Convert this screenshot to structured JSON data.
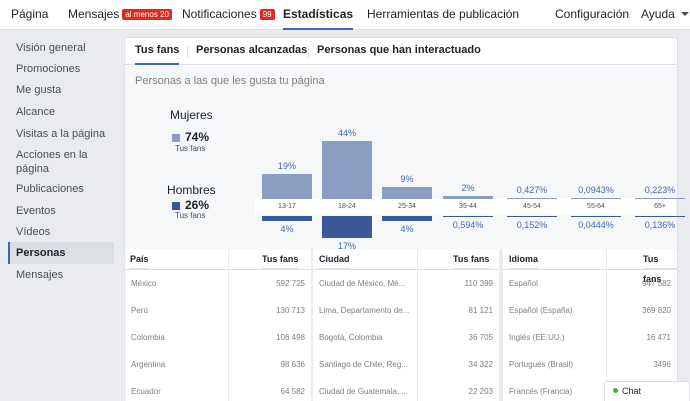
{
  "topnav": {
    "pagina": "Página",
    "mensajes": "Mensajes",
    "mensajes_badge": "al menos 20",
    "notificaciones": "Notificaciones",
    "notificaciones_badge": "99",
    "estadisticas": "Estadísticas",
    "herramientas": "Herramientas de publicación",
    "configuracion": "Configuración",
    "ayuda": "Ayuda"
  },
  "sidebar": {
    "items": [
      {
        "label": "Visión general"
      },
      {
        "label": "Promociones"
      },
      {
        "label": "Me gusta"
      },
      {
        "label": "Alcance"
      },
      {
        "label": "Visitas a la página"
      },
      {
        "label": "Acciones en la página"
      },
      {
        "label": "Publicaciones"
      },
      {
        "label": "Eventos"
      },
      {
        "label": "Vídeos"
      },
      {
        "label": "Personas"
      },
      {
        "label": "Mensajes"
      }
    ],
    "active": "Personas"
  },
  "tabs": [
    "Tus fans",
    "Personas alcanzadas",
    "Personas que han interactuado"
  ],
  "chart_data": {
    "type": "bar",
    "title": "Personas a las que les gusta tu página",
    "categories": [
      "13-17",
      "18-24",
      "25-34",
      "35-44",
      "45-54",
      "55-64",
      "65+"
    ],
    "series": [
      {
        "name": "Mujeres",
        "total": "74%",
        "sub": "Tus fans",
        "color": "#8b9dc3",
        "values": [
          19,
          44,
          9,
          2,
          0.427,
          0.0943,
          0.223
        ],
        "labels": [
          "19%",
          "44%",
          "9%",
          "2%",
          "0,427%",
          "0,0943%",
          "0,223%"
        ]
      },
      {
        "name": "Hombres",
        "total": "26%",
        "sub": "Tus fans",
        "color": "#3b5998",
        "values": [
          4,
          17,
          4,
          0.594,
          0.152,
          0.0444,
          0.136
        ],
        "labels": [
          "4%",
          "17%",
          "4%",
          "0,594%",
          "0,152%",
          "0,0444%",
          "0,136%"
        ]
      }
    ]
  },
  "tables": [
    {
      "header": "País",
      "value_header": "Tus fans",
      "rows": [
        [
          "México",
          "592 725"
        ],
        [
          "Perú",
          "130 713"
        ],
        [
          "Colombia",
          "106 498"
        ],
        [
          "Argentina",
          "98 636"
        ],
        [
          "Ecuador",
          "64 582"
        ]
      ]
    },
    {
      "header": "Ciudad",
      "value_header": "Tus fans",
      "rows": [
        [
          "Ciudad de México, Mé...",
          "110 399"
        ],
        [
          "Lima, Departamento de...",
          "81 121"
        ],
        [
          "Bogotá, Colombia",
          "36 705"
        ],
        [
          "Santiago de Chile, Reg...",
          "34 322"
        ],
        [
          "Ciudad de Guatemala, ...",
          "22 203"
        ]
      ]
    },
    {
      "header": "Idioma",
      "value_header": "Tus fans",
      "rows": [
        [
          "Español",
          "947 582"
        ],
        [
          "Español (España)",
          "369 820"
        ],
        [
          "Inglés (EE.UU.)",
          "16 471"
        ],
        [
          "Portugués (Brasil)",
          "3496"
        ],
        [
          "Francés (Francia)",
          ""
        ]
      ]
    }
  ],
  "chat": {
    "label": "Chat"
  }
}
